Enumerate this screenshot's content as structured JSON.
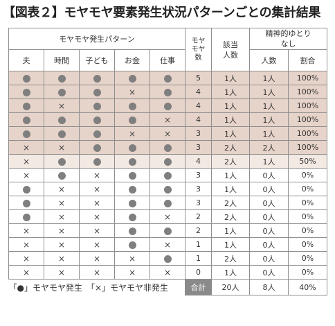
{
  "title": "【図表２】モヤモヤ要素発生状況パターンごとの集計結果",
  "colors": {
    "shade_dark": "#e6d3c9",
    "shade_light": "#f3e9e3",
    "plain": "#ffffff",
    "dot": "#7f7f7f",
    "total_label_bg": "#8a8a8a"
  },
  "header": {
    "group_label": "モヤモヤ発生パターン",
    "factors": [
      "夫",
      "時間",
      "子ども",
      "お金",
      "仕事"
    ],
    "count_label": "モヤ\nモヤ\n数",
    "applicable_label": "該当\n人数",
    "leeway_label": "精神的ゆとり\nなし",
    "people_label": "人数",
    "rate_label": "割合"
  },
  "symbols": {
    "occurred": "●",
    "not_occurred": "×"
  },
  "rows": [
    {
      "marks": [
        "o",
        "o",
        "o",
        "o",
        "o"
      ],
      "count": "5",
      "people": "1人",
      "leeway_people": "1人",
      "leeway_rate": "100%",
      "shade": "dark"
    },
    {
      "marks": [
        "o",
        "o",
        "o",
        "x",
        "o"
      ],
      "count": "4",
      "people": "1人",
      "leeway_people": "1人",
      "leeway_rate": "100%",
      "shade": "dark"
    },
    {
      "marks": [
        "o",
        "x",
        "o",
        "o",
        "o"
      ],
      "count": "4",
      "people": "1人",
      "leeway_people": "1人",
      "leeway_rate": "100%",
      "shade": "dark"
    },
    {
      "marks": [
        "o",
        "o",
        "o",
        "o",
        "x"
      ],
      "count": "4",
      "people": "1人",
      "leeway_people": "1人",
      "leeway_rate": "100%",
      "shade": "dark"
    },
    {
      "marks": [
        "o",
        "o",
        "o",
        "x",
        "x"
      ],
      "count": "3",
      "people": "1人",
      "leeway_people": "1人",
      "leeway_rate": "100%",
      "shade": "dark"
    },
    {
      "marks": [
        "x",
        "x",
        "o",
        "o",
        "o"
      ],
      "count": "3",
      "people": "2人",
      "leeway_people": "2人",
      "leeway_rate": "100%",
      "shade": "dark"
    },
    {
      "marks": [
        "x",
        "o",
        "o",
        "o",
        "o"
      ],
      "count": "4",
      "people": "2人",
      "leeway_people": "1人",
      "leeway_rate": "50%",
      "shade": "light"
    },
    {
      "marks": [
        "x",
        "o",
        "x",
        "o",
        "o"
      ],
      "count": "3",
      "people": "1人",
      "leeway_people": "0人",
      "leeway_rate": "0%",
      "shade": "none"
    },
    {
      "marks": [
        "o",
        "x",
        "x",
        "o",
        "o"
      ],
      "count": "3",
      "people": "1人",
      "leeway_people": "0人",
      "leeway_rate": "0%",
      "shade": "none"
    },
    {
      "marks": [
        "o",
        "x",
        "x",
        "o",
        "o"
      ],
      "count": "3",
      "people": "2人",
      "leeway_people": "0人",
      "leeway_rate": "0%",
      "shade": "none"
    },
    {
      "marks": [
        "o",
        "x",
        "x",
        "o",
        "x"
      ],
      "count": "2",
      "people": "2人",
      "leeway_people": "0人",
      "leeway_rate": "0%",
      "shade": "none"
    },
    {
      "marks": [
        "x",
        "x",
        "x",
        "o",
        "o"
      ],
      "count": "2",
      "people": "1人",
      "leeway_people": "0人",
      "leeway_rate": "0%",
      "shade": "none"
    },
    {
      "marks": [
        "x",
        "x",
        "x",
        "o",
        "x"
      ],
      "count": "1",
      "people": "1人",
      "leeway_people": "0人",
      "leeway_rate": "0%",
      "shade": "none"
    },
    {
      "marks": [
        "x",
        "x",
        "x",
        "x",
        "o"
      ],
      "count": "1",
      "people": "2人",
      "leeway_people": "0人",
      "leeway_rate": "0%",
      "shade": "none"
    },
    {
      "marks": [
        "x",
        "x",
        "x",
        "x",
        "x"
      ],
      "count": "0",
      "people": "1人",
      "leeway_people": "0人",
      "leeway_rate": "0%",
      "shade": "none"
    }
  ],
  "footer": {
    "legend": "「●」モヤモヤ発生　「×」モヤモヤ非発生",
    "total_label": "合計",
    "total_people": "20人",
    "total_leeway_people": "8人",
    "total_leeway_rate": "40%"
  }
}
